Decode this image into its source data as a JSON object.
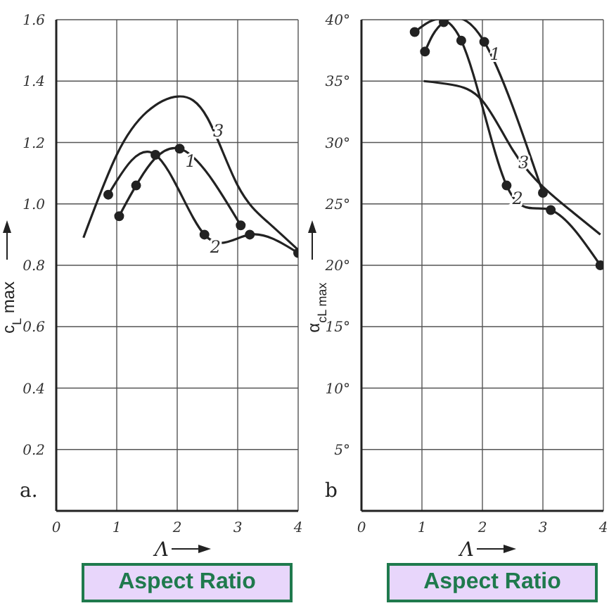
{
  "chart_data": [
    {
      "type": "line",
      "xlabel": "Λ",
      "ylabel": "c$_{L}$ max",
      "annotations": [
        "a.",
        "Aspect Ratio"
      ],
      "xlim": [
        0,
        4
      ],
      "xticks": [
        0,
        1,
        2,
        3,
        4
      ],
      "ylim": [
        0,
        1.6
      ],
      "yticks": [
        {
          "value": 0.2,
          "label": "0.2"
        },
        {
          "value": 0.4,
          "label": "0.4"
        },
        {
          "value": 0.6,
          "label": "0.6"
        },
        {
          "value": 0.8,
          "label": "0.8"
        },
        {
          "value": 1.0,
          "label": "1.0"
        },
        {
          "value": 1.2,
          "label": "1.2"
        },
        {
          "value": 1.4,
          "label": "1.4"
        },
        {
          "value": 1.6,
          "label": "1.6"
        }
      ],
      "grid": true,
      "line_style": "solid",
      "series": [
        {
          "name": "1",
          "color": "#222222",
          "marker": "circle",
          "x": [
            1.04,
            1.32,
            2.04,
            3.05
          ],
          "values": [
            0.96,
            1.06,
            1.18,
            0.93
          ]
        },
        {
          "name": "2",
          "color": "#222222",
          "marker": "circle",
          "x": [
            0.86,
            1.64,
            2.45,
            3.2,
            4.0
          ],
          "values": [
            1.03,
            1.16,
            0.9,
            0.9,
            0.84
          ]
        },
        {
          "name": "3",
          "color": "#222222",
          "marker": "none",
          "x": [
            0.45,
            1.0,
            1.5,
            2.02,
            2.5,
            3.0,
            3.5,
            4.0
          ],
          "values": [
            0.89,
            1.16,
            1.3,
            1.35,
            1.28,
            1.06,
            0.94,
            0.85
          ]
        }
      ]
    },
    {
      "type": "line",
      "xlabel": "Λ",
      "ylabel": "α$_{cL max}$",
      "annotations": [
        "b",
        "Aspect Ratio"
      ],
      "xlim": [
        0,
        4
      ],
      "xticks": [
        0,
        1,
        2,
        3,
        4
      ],
      "ylim": [
        0,
        40
      ],
      "yticks": [
        {
          "value": 5,
          "label": "5°"
        },
        {
          "value": 10,
          "label": "10°"
        },
        {
          "value": 15,
          "label": "15°"
        },
        {
          "value": 20,
          "label": "20°"
        },
        {
          "value": 25,
          "label": "25°"
        },
        {
          "value": 30,
          "label": "30°"
        },
        {
          "value": 35,
          "label": "35°"
        },
        {
          "value": 40,
          "label": "40°"
        }
      ],
      "grid": true,
      "line_style": "solid",
      "series": [
        {
          "name": "1",
          "color": "#222222",
          "marker": "circle",
          "x": [
            1.05,
            1.36,
            2.03,
            3.0
          ],
          "values": [
            37.4,
            39.8,
            38.2,
            25.9
          ]
        },
        {
          "name": "2",
          "color": "#222222",
          "marker": "circle",
          "x": [
            0.88,
            1.65,
            2.4,
            3.13,
            3.95
          ],
          "values": [
            39.0,
            38.3,
            26.5,
            24.5,
            20.0
          ]
        },
        {
          "name": "3",
          "color": "#222222",
          "marker": "none",
          "x": [
            1.03,
            1.5,
            2.0,
            2.5,
            3.0,
            3.5,
            3.95
          ],
          "values": [
            35.0,
            34.7,
            33.4,
            29.4,
            26.4,
            24.3,
            22.5
          ]
        }
      ]
    }
  ]
}
